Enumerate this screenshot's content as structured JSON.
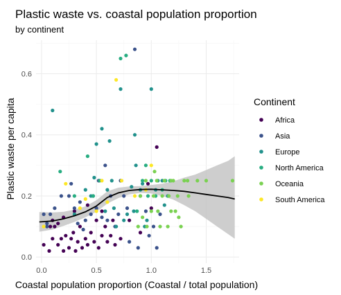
{
  "chart_data": {
    "type": "scatter",
    "title": "Plastic waste vs. coastal population proportion",
    "subtitle": "by continent",
    "xlabel": "Coastal population proportion (Coastal / total population)",
    "ylabel": "Plastic waste per capita",
    "xlim": [
      -0.05,
      1.8
    ],
    "ylim": [
      -0.02,
      0.71
    ],
    "x_ticks": [
      0.0,
      0.5,
      1.0,
      1.5
    ],
    "x_tick_labels": [
      "0.0",
      "0.5",
      "1.0",
      "1.5"
    ],
    "y_ticks": [
      0.0,
      0.2,
      0.4,
      0.6
    ],
    "y_tick_labels": [
      "0.0",
      "0.2",
      "0.4",
      "0.6"
    ],
    "grid": true,
    "legend": {
      "title": "Continent",
      "placement": "right"
    },
    "series": [
      {
        "name": "Africa",
        "color": "#440154",
        "points": [
          [
            0.02,
            0.04
          ],
          [
            0.07,
            0.02
          ],
          [
            0.1,
            0.06
          ],
          [
            0.12,
            0.1
          ],
          [
            0.15,
            0.04
          ],
          [
            0.18,
            0.06
          ],
          [
            0.2,
            0.02
          ],
          [
            0.22,
            0.07
          ],
          [
            0.25,
            0.03
          ],
          [
            0.27,
            0.06
          ],
          [
            0.29,
            0.08
          ],
          [
            0.31,
            0.02
          ],
          [
            0.33,
            0.05
          ],
          [
            0.35,
            0.1
          ],
          [
            0.37,
            0.03
          ],
          [
            0.4,
            0.06
          ],
          [
            0.42,
            0.04
          ],
          [
            0.45,
            0.08
          ],
          [
            0.48,
            0.05
          ],
          [
            0.5,
            0.12
          ],
          [
            0.52,
            0.03
          ],
          [
            0.55,
            0.07
          ],
          [
            0.58,
            0.1
          ],
          [
            0.6,
            0.05
          ],
          [
            0.63,
            0.07
          ],
          [
            0.67,
            0.04
          ],
          [
            0.72,
            0.06
          ],
          [
            0.8,
            0.12
          ],
          [
            0.9,
            0.08
          ],
          [
            1.0,
            0.16
          ],
          [
            1.05,
            0.36
          ],
          [
            0.97,
            0.24
          ],
          [
            0.3,
            0.15
          ],
          [
            0.2,
            0.13
          ],
          [
            0.15,
            0.11
          ],
          [
            0.08,
            0.1
          ],
          [
            0.55,
            0.15
          ],
          [
            0.65,
            0.12
          ],
          [
            0.1,
            0.12
          ],
          [
            0.42,
            0.17
          ]
        ]
      },
      {
        "name": "Asia",
        "color": "#3b528b",
        "points": [
          [
            0.02,
            0.14
          ],
          [
            0.05,
            0.11
          ],
          [
            0.08,
            0.14
          ],
          [
            0.12,
            0.16
          ],
          [
            0.18,
            0.2
          ],
          [
            0.25,
            0.2
          ],
          [
            0.27,
            0.24
          ],
          [
            0.3,
            0.16
          ],
          [
            0.35,
            0.18
          ],
          [
            0.38,
            0.09
          ],
          [
            0.4,
            0.12
          ],
          [
            0.45,
            0.14
          ],
          [
            0.47,
            0.2
          ],
          [
            0.5,
            0.16
          ],
          [
            0.52,
            0.25
          ],
          [
            0.55,
            0.13
          ],
          [
            0.6,
            0.12
          ],
          [
            0.63,
            0.2
          ],
          [
            0.67,
            0.1
          ],
          [
            0.7,
            0.14
          ],
          [
            0.75,
            0.2
          ],
          [
            0.8,
            0.05
          ],
          [
            0.85,
            0.68
          ],
          [
            0.88,
            0.03
          ],
          [
            0.9,
            0.2
          ],
          [
            0.95,
            0.15
          ],
          [
            0.98,
            0.07
          ],
          [
            1.02,
            0.1
          ],
          [
            1.05,
            0.03
          ],
          [
            1.08,
            0.14
          ],
          [
            0.05,
            0.1
          ],
          [
            0.33,
            0.11
          ],
          [
            0.58,
            0.3
          ],
          [
            0.72,
            0.25
          ],
          [
            0.78,
            0.16
          ]
        ]
      },
      {
        "name": "Europe",
        "color": "#21918c",
        "points": [
          [
            0.1,
            0.48
          ],
          [
            0.55,
            0.42
          ],
          [
            0.62,
            0.38
          ],
          [
            0.72,
            0.55
          ],
          [
            0.5,
            0.37
          ],
          [
            0.45,
            0.2
          ],
          [
            0.58,
            0.15
          ],
          [
            0.68,
            0.1
          ],
          [
            0.75,
            0.12
          ],
          [
            0.82,
            0.23
          ],
          [
            0.86,
            0.3
          ],
          [
            0.92,
            0.24
          ],
          [
            0.96,
            0.12
          ],
          [
            1.0,
            0.55
          ],
          [
            1.04,
            0.22
          ],
          [
            1.06,
            0.25
          ],
          [
            1.1,
            0.25
          ],
          [
            1.12,
            0.17
          ],
          [
            1.15,
            0.2
          ],
          [
            0.85,
            0.4
          ],
          [
            0.48,
            0.26
          ],
          [
            0.6,
            0.22
          ],
          [
            0.64,
            0.25
          ],
          [
            0.94,
            0.1
          ],
          [
            0.84,
            0.15
          ],
          [
            0.3,
            0.14
          ],
          [
            0.4,
            0.22
          ],
          [
            0.66,
            0.16
          ],
          [
            0.78,
            0.14
          ],
          [
            0.9,
            0.22
          ]
        ]
      },
      {
        "name": "North America",
        "color": "#27ad81",
        "points": [
          [
            0.17,
            0.28
          ],
          [
            0.3,
            0.2
          ],
          [
            0.42,
            0.33
          ],
          [
            0.47,
            0.2
          ],
          [
            0.53,
            0.25
          ],
          [
            0.72,
            0.65
          ],
          [
            0.77,
            0.66
          ],
          [
            0.87,
            0.15
          ],
          [
            0.92,
            0.25
          ],
          [
            0.95,
            0.3
          ],
          [
            0.97,
            0.2
          ],
          [
            1.0,
            0.25
          ],
          [
            1.04,
            0.2
          ],
          [
            1.1,
            0.22
          ],
          [
            1.13,
            0.25
          ],
          [
            1.17,
            0.25
          ]
        ]
      },
      {
        "name": "Oceania",
        "color": "#7ad151",
        "points": [
          [
            0.88,
            0.1
          ],
          [
            0.92,
            0.13
          ],
          [
            0.96,
            0.1
          ],
          [
            1.0,
            0.15
          ],
          [
            1.03,
            0.28
          ],
          [
            1.06,
            0.15
          ],
          [
            1.08,
            0.1
          ],
          [
            1.12,
            0.25
          ],
          [
            1.15,
            0.1
          ],
          [
            1.18,
            0.15
          ],
          [
            1.2,
            0.25
          ],
          [
            1.22,
            0.15
          ],
          [
            1.25,
            0.13
          ],
          [
            1.27,
            0.1
          ],
          [
            1.3,
            0.25
          ],
          [
            1.33,
            0.25
          ],
          [
            1.42,
            0.25
          ],
          [
            1.5,
            0.25
          ],
          [
            1.74,
            0.25
          ],
          [
            0.95,
            0.25
          ],
          [
            1.02,
            0.2
          ],
          [
            1.1,
            0.2
          ],
          [
            1.16,
            0.2
          ],
          [
            1.24,
            0.2
          ],
          [
            1.34,
            0.2
          ],
          [
            0.9,
            0.2
          ],
          [
            1.05,
            0.25
          ],
          [
            1.18,
            0.25
          ]
        ]
      },
      {
        "name": "South America",
        "color": "#fde725",
        "points": [
          [
            0.02,
            0.1
          ],
          [
            0.22,
            0.24
          ],
          [
            0.35,
            0.16
          ],
          [
            0.4,
            0.19
          ],
          [
            0.55,
            0.25
          ],
          [
            0.6,
            0.18
          ],
          [
            0.68,
            0.58
          ],
          [
            0.73,
            0.25
          ],
          [
            0.85,
            0.2
          ],
          [
            0.95,
            0.22
          ],
          [
            1.0,
            0.3
          ],
          [
            0.5,
            0.15
          ]
        ]
      }
    ],
    "smooth": {
      "color": "#000000",
      "band_color": "#c6c6c6",
      "x": [
        -0.02,
        0.1,
        0.2,
        0.3,
        0.4,
        0.5,
        0.6,
        0.7,
        0.8,
        0.9,
        1.0,
        1.1,
        1.2,
        1.3,
        1.4,
        1.5,
        1.6,
        1.7,
        1.76
      ],
      "y": [
        0.115,
        0.118,
        0.125,
        0.135,
        0.148,
        0.167,
        0.195,
        0.21,
        0.218,
        0.221,
        0.222,
        0.22,
        0.218,
        0.215,
        0.21,
        0.205,
        0.2,
        0.195,
        0.19
      ],
      "lower": [
        0.083,
        0.09,
        0.102,
        0.115,
        0.13,
        0.148,
        0.175,
        0.193,
        0.205,
        0.21,
        0.208,
        0.2,
        0.188,
        0.17,
        0.15,
        0.125,
        0.1,
        0.075,
        0.06
      ],
      "upper": [
        0.147,
        0.146,
        0.148,
        0.155,
        0.166,
        0.186,
        0.215,
        0.227,
        0.231,
        0.232,
        0.236,
        0.24,
        0.248,
        0.26,
        0.27,
        0.285,
        0.3,
        0.315,
        0.33
      ]
    }
  }
}
